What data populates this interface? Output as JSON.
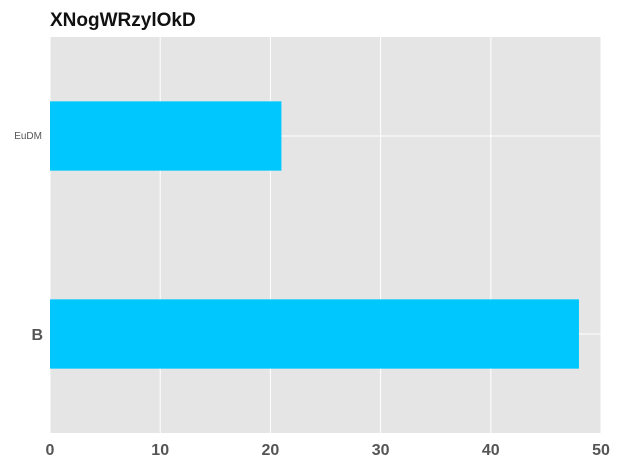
{
  "chart_data": {
    "type": "bar",
    "orientation": "horizontal",
    "title": "XNogWRzylOkD",
    "xlabel": "",
    "ylabel": "",
    "categories": [
      "B",
      "EuDM"
    ],
    "values": [
      48,
      21
    ],
    "xlim": [
      0,
      50
    ],
    "xticks": [
      0,
      10,
      20,
      30,
      40,
      50
    ],
    "grid": true,
    "colors": {
      "bar": "#00c8ff",
      "plot_background": "#e5e5e5",
      "grid": "#ffffff"
    }
  }
}
